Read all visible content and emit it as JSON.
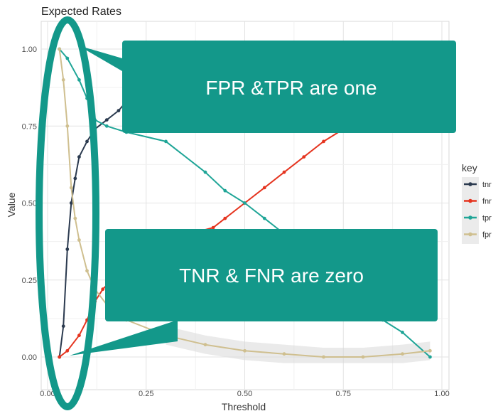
{
  "chart_data": {
    "type": "line",
    "title": "Expected Rates",
    "xlabel": "Threshold",
    "ylabel": "Value",
    "xlim": [
      0.0,
      1.0
    ],
    "ylim": [
      -0.03,
      1.04
    ],
    "x_ticks": [
      "0.00",
      "0.25",
      "0.50",
      "0.75",
      "1.00"
    ],
    "y_ticks": [
      "0.00",
      "0.25",
      "0.50",
      "0.75",
      "1.00"
    ],
    "grid": true,
    "legend_title": "key",
    "legend_position": "right",
    "series": [
      {
        "name": "tnr",
        "color": "#2b3a4f",
        "points": [
          [
            0.03,
            0.0
          ],
          [
            0.04,
            0.1
          ],
          [
            0.05,
            0.35
          ],
          [
            0.06,
            0.5
          ],
          [
            0.07,
            0.58
          ],
          [
            0.08,
            0.65
          ],
          [
            0.1,
            0.7
          ],
          [
            0.12,
            0.74
          ],
          [
            0.15,
            0.77
          ],
          [
            0.18,
            0.8
          ],
          [
            0.2,
            0.83
          ],
          [
            0.25,
            0.86
          ]
        ]
      },
      {
        "name": "fnr",
        "color": "#e5341f",
        "points": [
          [
            0.03,
            0.0
          ],
          [
            0.05,
            0.02
          ],
          [
            0.08,
            0.07
          ],
          [
            0.1,
            0.12
          ],
          [
            0.12,
            0.18
          ],
          [
            0.14,
            0.22
          ],
          [
            0.2,
            0.3
          ],
          [
            0.3,
            0.38
          ],
          [
            0.42,
            0.42
          ],
          [
            0.45,
            0.45
          ],
          [
            0.5,
            0.5
          ],
          [
            0.55,
            0.55
          ],
          [
            0.6,
            0.6
          ],
          [
            0.65,
            0.65
          ],
          [
            0.7,
            0.7
          ],
          [
            0.75,
            0.74
          ]
        ]
      },
      {
        "name": "tpr",
        "color": "#1fa597",
        "points": [
          [
            0.03,
            1.0
          ],
          [
            0.05,
            0.97
          ],
          [
            0.08,
            0.9
          ],
          [
            0.1,
            0.84
          ],
          [
            0.12,
            0.77
          ],
          [
            0.15,
            0.75
          ],
          [
            0.2,
            0.73
          ],
          [
            0.3,
            0.7
          ],
          [
            0.4,
            0.6
          ],
          [
            0.45,
            0.54
          ],
          [
            0.5,
            0.5
          ],
          [
            0.55,
            0.45
          ],
          [
            0.6,
            0.4
          ],
          [
            0.85,
            0.12
          ],
          [
            0.9,
            0.08
          ],
          [
            0.97,
            0.0
          ]
        ]
      },
      {
        "name": "fpr",
        "color": "#cfbf8f",
        "points": [
          [
            0.03,
            1.0
          ],
          [
            0.04,
            0.9
          ],
          [
            0.05,
            0.75
          ],
          [
            0.06,
            0.55
          ],
          [
            0.07,
            0.45
          ],
          [
            0.08,
            0.38
          ],
          [
            0.1,
            0.28
          ],
          [
            0.12,
            0.22
          ],
          [
            0.15,
            0.17
          ],
          [
            0.2,
            0.12
          ],
          [
            0.3,
            0.07
          ],
          [
            0.4,
            0.04
          ],
          [
            0.5,
            0.02
          ],
          [
            0.6,
            0.01
          ],
          [
            0.7,
            0.0
          ],
          [
            0.8,
            0.0
          ],
          [
            0.9,
            0.01
          ],
          [
            0.97,
            0.02
          ]
        ]
      }
    ]
  },
  "annotations": {
    "callout_top": "FPR &TPR are one",
    "callout_bottom": "TNR & FNR are zero",
    "callout_color": "#13988a"
  }
}
